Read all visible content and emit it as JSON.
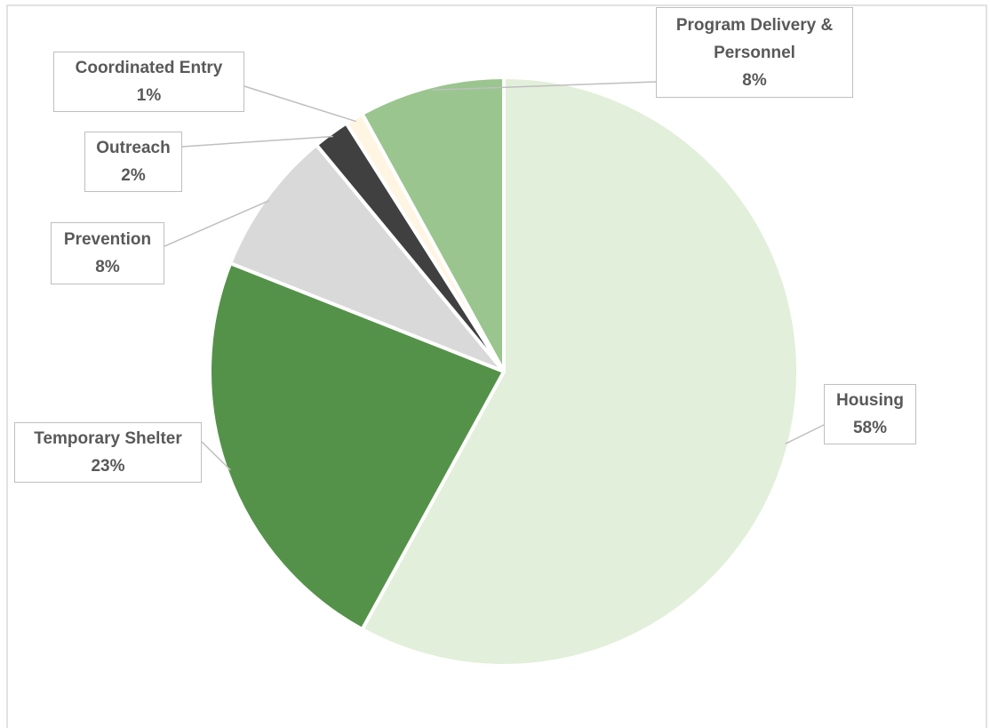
{
  "chart_data": {
    "type": "pie",
    "categories": [
      "Housing",
      "Temporary Shelter",
      "Prevention",
      "Outreach",
      "Coordinated Entry",
      "Program Delivery & Personnel"
    ],
    "values": [
      58,
      23,
      8,
      2,
      1,
      8
    ],
    "value_labels": [
      "58%",
      "23%",
      "8%",
      "2%",
      "1%",
      "8%"
    ],
    "colors": [
      "#e2efda",
      "#559249",
      "#d9d9d9",
      "#404040",
      "#fff5e3",
      "#9ac58f"
    ]
  }
}
